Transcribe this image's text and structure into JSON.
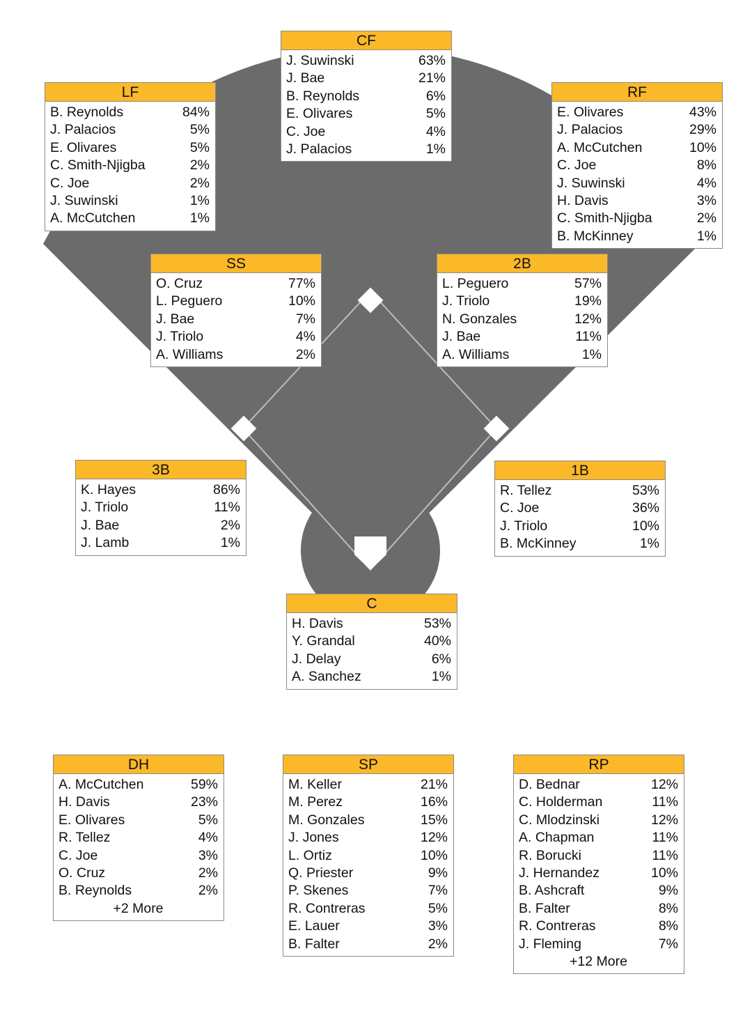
{
  "colors": {
    "field": "#6b6b6b",
    "header": "#fbb829",
    "base": "#ffffff"
  },
  "positions": [
    {
      "pos": "CF",
      "players": [
        [
          "J. Suwinski",
          "63%"
        ],
        [
          "J. Bae",
          "21%"
        ],
        [
          "B. Reynolds",
          "6%"
        ],
        [
          "E. Olivares",
          "5%"
        ],
        [
          "C. Joe",
          "4%"
        ],
        [
          "J. Palacios",
          "1%"
        ]
      ]
    },
    {
      "pos": "LF",
      "players": [
        [
          "B. Reynolds",
          "84%"
        ],
        [
          "J. Palacios",
          "5%"
        ],
        [
          "E. Olivares",
          "5%"
        ],
        [
          "C. Smith-Njigba",
          "2%"
        ],
        [
          "C. Joe",
          "2%"
        ],
        [
          "J. Suwinski",
          "1%"
        ],
        [
          "A. McCutchen",
          "1%"
        ]
      ]
    },
    {
      "pos": "RF",
      "players": [
        [
          "E. Olivares",
          "43%"
        ],
        [
          "J. Palacios",
          "29%"
        ],
        [
          "A. McCutchen",
          "10%"
        ],
        [
          "C. Joe",
          "8%"
        ],
        [
          "J. Suwinski",
          "4%"
        ],
        [
          "H. Davis",
          "3%"
        ],
        [
          "C. Smith-Njigba",
          "2%"
        ],
        [
          "B. McKinney",
          "1%"
        ]
      ]
    },
    {
      "pos": "SS",
      "players": [
        [
          "O. Cruz",
          "77%"
        ],
        [
          "L. Peguero",
          "10%"
        ],
        [
          "J. Bae",
          "7%"
        ],
        [
          "J. Triolo",
          "4%"
        ],
        [
          "A. Williams",
          "2%"
        ]
      ]
    },
    {
      "pos": "2B",
      "players": [
        [
          "L. Peguero",
          "57%"
        ],
        [
          "J. Triolo",
          "19%"
        ],
        [
          "N. Gonzales",
          "12%"
        ],
        [
          "J. Bae",
          "11%"
        ],
        [
          "A. Williams",
          "1%"
        ]
      ]
    },
    {
      "pos": "3B",
      "players": [
        [
          "K. Hayes",
          "86%"
        ],
        [
          "J. Triolo",
          "11%"
        ],
        [
          "J. Bae",
          "2%"
        ],
        [
          "J. Lamb",
          "1%"
        ]
      ]
    },
    {
      "pos": "1B",
      "players": [
        [
          "R. Tellez",
          "53%"
        ],
        [
          "C. Joe",
          "36%"
        ],
        [
          "J. Triolo",
          "10%"
        ],
        [
          "B. McKinney",
          "1%"
        ]
      ]
    },
    {
      "pos": "C",
      "players": [
        [
          "H. Davis",
          "53%"
        ],
        [
          "Y. Grandal",
          "40%"
        ],
        [
          "J. Delay",
          "6%"
        ],
        [
          "A. Sanchez",
          "1%"
        ]
      ]
    },
    {
      "pos": "DH",
      "players": [
        [
          "A. McCutchen",
          "59%"
        ],
        [
          "H. Davis",
          "23%"
        ],
        [
          "E. Olivares",
          "5%"
        ],
        [
          "R. Tellez",
          "4%"
        ],
        [
          "C. Joe",
          "3%"
        ],
        [
          "O. Cruz",
          "2%"
        ],
        [
          "B. Reynolds",
          "2%"
        ]
      ],
      "more": "+2 More"
    },
    {
      "pos": "SP",
      "players": [
        [
          "M. Keller",
          "21%"
        ],
        [
          "M. Perez",
          "16%"
        ],
        [
          "M. Gonzales",
          "15%"
        ],
        [
          "J. Jones",
          "12%"
        ],
        [
          "L. Ortiz",
          "10%"
        ],
        [
          "Q. Priester",
          "9%"
        ],
        [
          "P. Skenes",
          "7%"
        ],
        [
          "R. Contreras",
          "5%"
        ],
        [
          "E. Lauer",
          "3%"
        ],
        [
          "B. Falter",
          "2%"
        ]
      ]
    },
    {
      "pos": "RP",
      "players": [
        [
          "D. Bednar",
          "12%"
        ],
        [
          "C. Holderman",
          "11%"
        ],
        [
          "C. Mlodzinski",
          "12%"
        ],
        [
          "A. Chapman",
          "11%"
        ],
        [
          "R. Borucki",
          "11%"
        ],
        [
          "J. Hernandez",
          "10%"
        ],
        [
          "B. Ashcraft",
          "9%"
        ],
        [
          "B. Falter",
          "8%"
        ],
        [
          "R. Contreras",
          "8%"
        ],
        [
          "J. Fleming",
          "7%"
        ]
      ],
      "more": "+12 More"
    }
  ]
}
